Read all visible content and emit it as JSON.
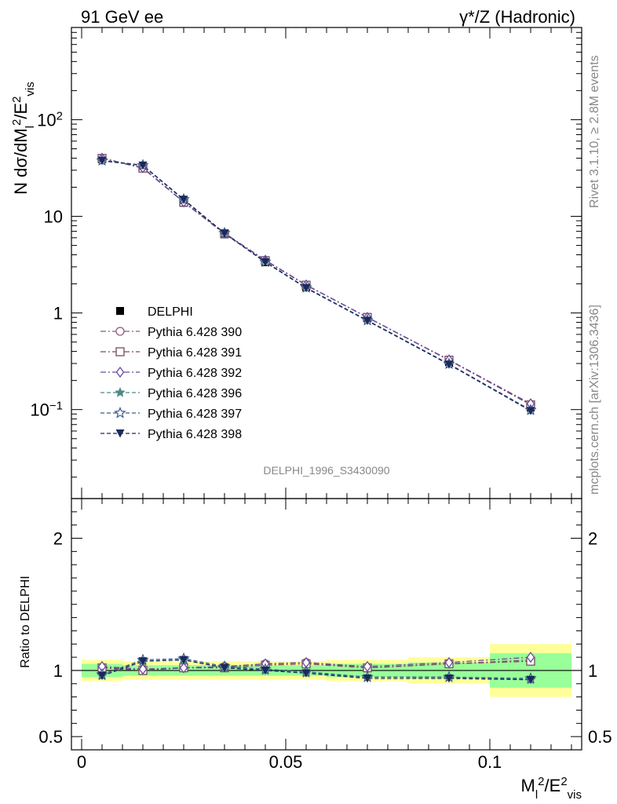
{
  "header": {
    "left": "91 GeV ee",
    "right": "γ*/Z (Hadronic)"
  },
  "side_labels": {
    "rivet": "Rivet 3.1.10, ≥ 2.8M events",
    "mcplots": "mcplots.cern.ch [arXiv:1306.3436]"
  },
  "watermark": "DELPHI_1996_S3430090",
  "main_ylabel": "N dσ/dM_l^2/E_vis^2",
  "ratio_ylabel": "Ratio to DELPHI",
  "xlabel": "M_l^2/E_vis^2",
  "ticks": {
    "main_y": [
      "10^-1",
      "1",
      "10",
      "10^2"
    ],
    "ratio_y": [
      "0.5",
      "1",
      "2"
    ],
    "x": [
      "0",
      "0.05",
      "0.1"
    ]
  },
  "chart_data": [
    {
      "type": "line",
      "panel": "main",
      "yscale": "log",
      "xlim": [
        -0.0025,
        0.1225
      ],
      "ylim": [
        0.012,
        900
      ],
      "x": [
        0.005,
        0.015,
        0.025,
        0.035,
        0.045,
        0.055,
        0.07,
        0.09,
        0.11
      ],
      "series": [
        {
          "name": "DELPHI",
          "style": "data",
          "color": "#000000",
          "values": [
            39,
            31.5,
            13.8,
            6.5,
            3.35,
            1.85,
            0.88,
            0.31,
            0.105
          ]
        },
        {
          "name": "Pythia 6.428 390",
          "style": "dashdot",
          "marker": "circle-open",
          "color": "#8a5a7a",
          "values": [
            40,
            31.8,
            14.0,
            6.65,
            3.5,
            1.95,
            0.9,
            0.325,
            0.113
          ]
        },
        {
          "name": "Pythia 6.428 391",
          "style": "dashdot",
          "marker": "square-open",
          "color": "#7a4a5a",
          "values": [
            39.8,
            31.5,
            14.0,
            6.6,
            3.48,
            1.94,
            0.9,
            0.325,
            0.112
          ]
        },
        {
          "name": "Pythia 6.428 392",
          "style": "dashdot",
          "marker": "diamond-open",
          "color": "#6a4aa0",
          "values": [
            40,
            31.9,
            14.1,
            6.7,
            3.52,
            1.95,
            0.9,
            0.327,
            0.115
          ]
        },
        {
          "name": "Pythia 6.428 396",
          "style": "dashed",
          "marker": "star-filled",
          "color": "#4a8a8a",
          "values": [
            37.5,
            33.5,
            14.8,
            6.65,
            3.37,
            1.82,
            0.835,
            0.295,
            0.098
          ]
        },
        {
          "name": "Pythia 6.428 397",
          "style": "dashed",
          "marker": "star-open",
          "color": "#3a5a8a",
          "values": [
            37.8,
            33.8,
            15.0,
            6.7,
            3.38,
            1.83,
            0.84,
            0.297,
            0.099
          ]
        },
        {
          "name": "Pythia 6.428 398",
          "style": "dashed",
          "marker": "triangle-down-filled",
          "color": "#1a2a5a",
          "values": [
            37.6,
            33.6,
            14.9,
            6.65,
            3.35,
            1.81,
            0.83,
            0.293,
            0.097
          ]
        }
      ]
    },
    {
      "type": "line",
      "panel": "ratio",
      "xlim": [
        -0.0025,
        0.1225
      ],
      "ylim": [
        0.4,
        2.3
      ],
      "bands": {
        "x_edges": [
          0.0,
          0.01,
          0.02,
          0.03,
          0.04,
          0.05,
          0.06,
          0.08,
          0.1,
          0.12
        ],
        "inner": [
          0.05,
          0.04,
          0.04,
          0.04,
          0.04,
          0.04,
          0.05,
          0.06,
          0.13
        ],
        "outer": [
          0.08,
          0.07,
          0.07,
          0.07,
          0.07,
          0.07,
          0.08,
          0.1,
          0.2
        ]
      },
      "x": [
        0.005,
        0.015,
        0.025,
        0.035,
        0.045,
        0.055,
        0.07,
        0.09,
        0.11
      ],
      "series": [
        {
          "name": "Pythia 6.428 390",
          "values": [
            1.02,
            1.01,
            1.02,
            1.03,
            1.05,
            1.06,
            1.02,
            1.05,
            1.08
          ]
        },
        {
          "name": "Pythia 6.428 391",
          "values": [
            1.02,
            1.0,
            1.02,
            1.02,
            1.04,
            1.05,
            1.02,
            1.05,
            1.07
          ]
        },
        {
          "name": "Pythia 6.428 392",
          "values": [
            1.03,
            1.01,
            1.02,
            1.03,
            1.05,
            1.06,
            1.03,
            1.06,
            1.1
          ]
        },
        {
          "name": "Pythia 6.428 396",
          "values": [
            0.96,
            1.07,
            1.08,
            1.02,
            1.0,
            0.98,
            0.95,
            0.95,
            0.93
          ]
        },
        {
          "name": "Pythia 6.428 397",
          "values": [
            0.97,
            1.08,
            1.09,
            1.03,
            1.01,
            0.99,
            0.95,
            0.95,
            0.94
          ]
        },
        {
          "name": "Pythia 6.428 398",
          "values": [
            0.96,
            1.07,
            1.08,
            1.02,
            1.0,
            0.98,
            0.94,
            0.94,
            0.93
          ]
        }
      ]
    }
  ]
}
